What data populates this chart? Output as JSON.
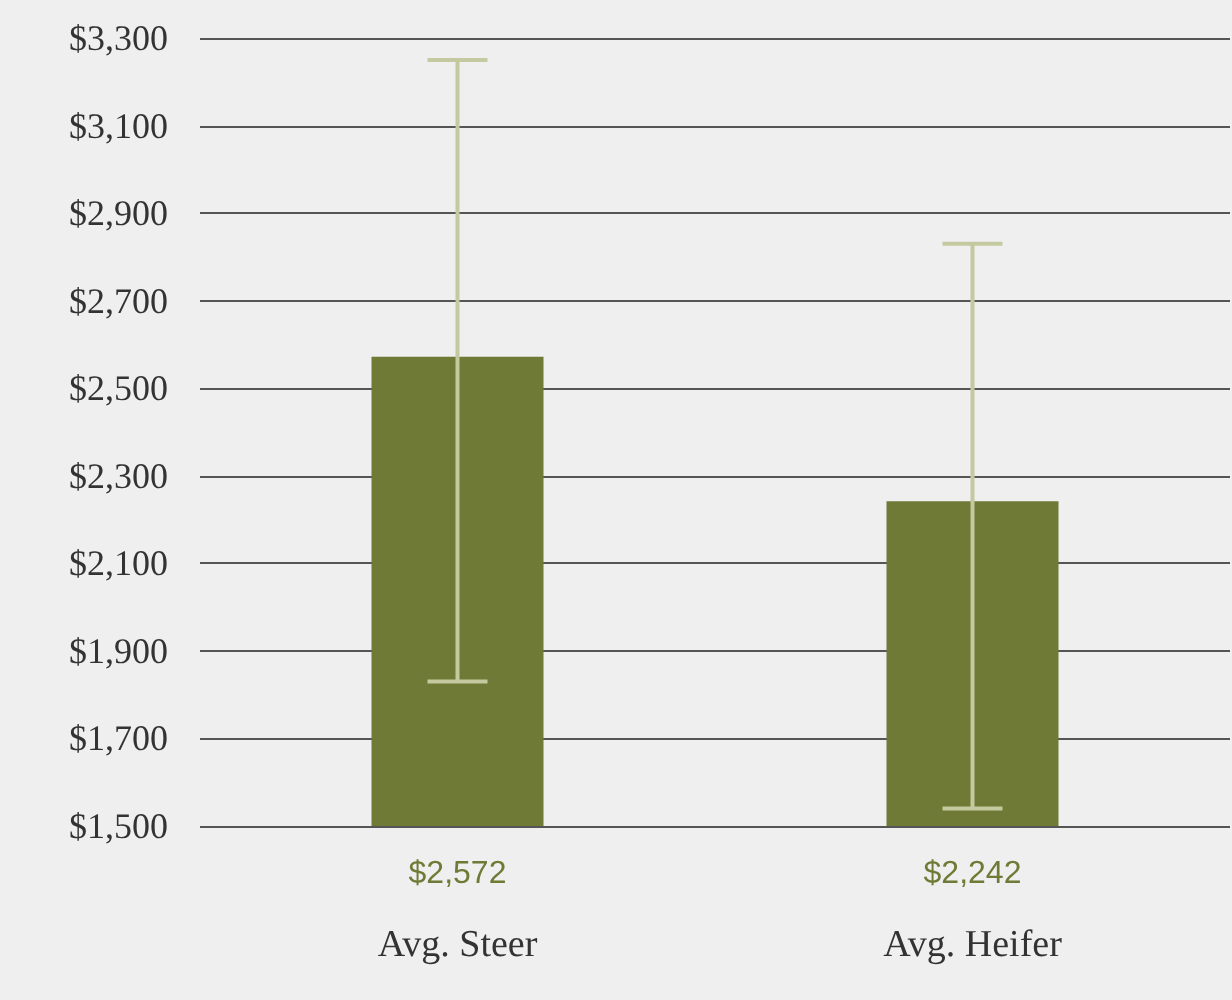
{
  "chart_data": {
    "type": "bar",
    "categories": [
      "Avg. Steer",
      "Avg. Heifer"
    ],
    "values": [
      2572,
      2242
    ],
    "color": "#6e7a35",
    "value_labels": [
      "$2,572",
      "$2,242"
    ],
    "errors": [
      [
        1830,
        3250
      ],
      [
        1540,
        2830
      ]
    ],
    "ylim": [
      1500,
      3300
    ],
    "yticks": [
      {
        "value": 1500,
        "label": "$1,500"
      },
      {
        "value": 1700,
        "label": "$1,700"
      },
      {
        "value": 1900,
        "label": "$1,900"
      },
      {
        "value": 2100,
        "label": "$2,100"
      },
      {
        "value": 2300,
        "label": "$2,300"
      },
      {
        "value": 2500,
        "label": "$2,500"
      },
      {
        "value": 2700,
        "label": "$2,700"
      },
      {
        "value": 2900,
        "label": "$2,900"
      },
      {
        "value": 3100,
        "label": "$3,100"
      },
      {
        "value": 3300,
        "label": "$3,300"
      }
    ],
    "grid": "y"
  }
}
